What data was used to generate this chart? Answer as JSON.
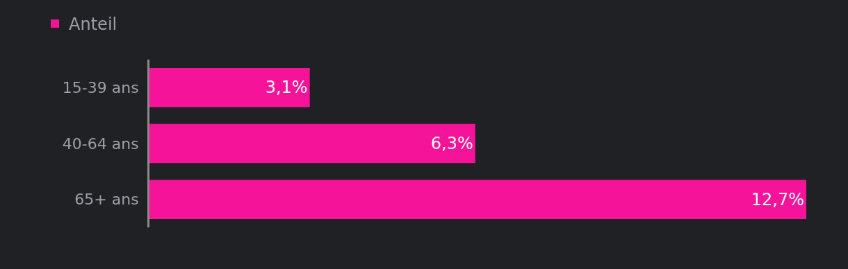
{
  "chart_data": {
    "type": "bar",
    "orientation": "horizontal",
    "relative": false,
    "categories": [
      "15-39 ans",
      "40-64 ans",
      "65+ ans"
    ],
    "series": [
      {
        "name": "Anteil",
        "color": "#f5139a",
        "values": [
          3.1,
          6.3,
          12.7
        ],
        "value_labels": [
          "3,1%",
          "6,3%",
          "12,7%"
        ]
      }
    ],
    "legend": "top left",
    "grid": false
  }
}
